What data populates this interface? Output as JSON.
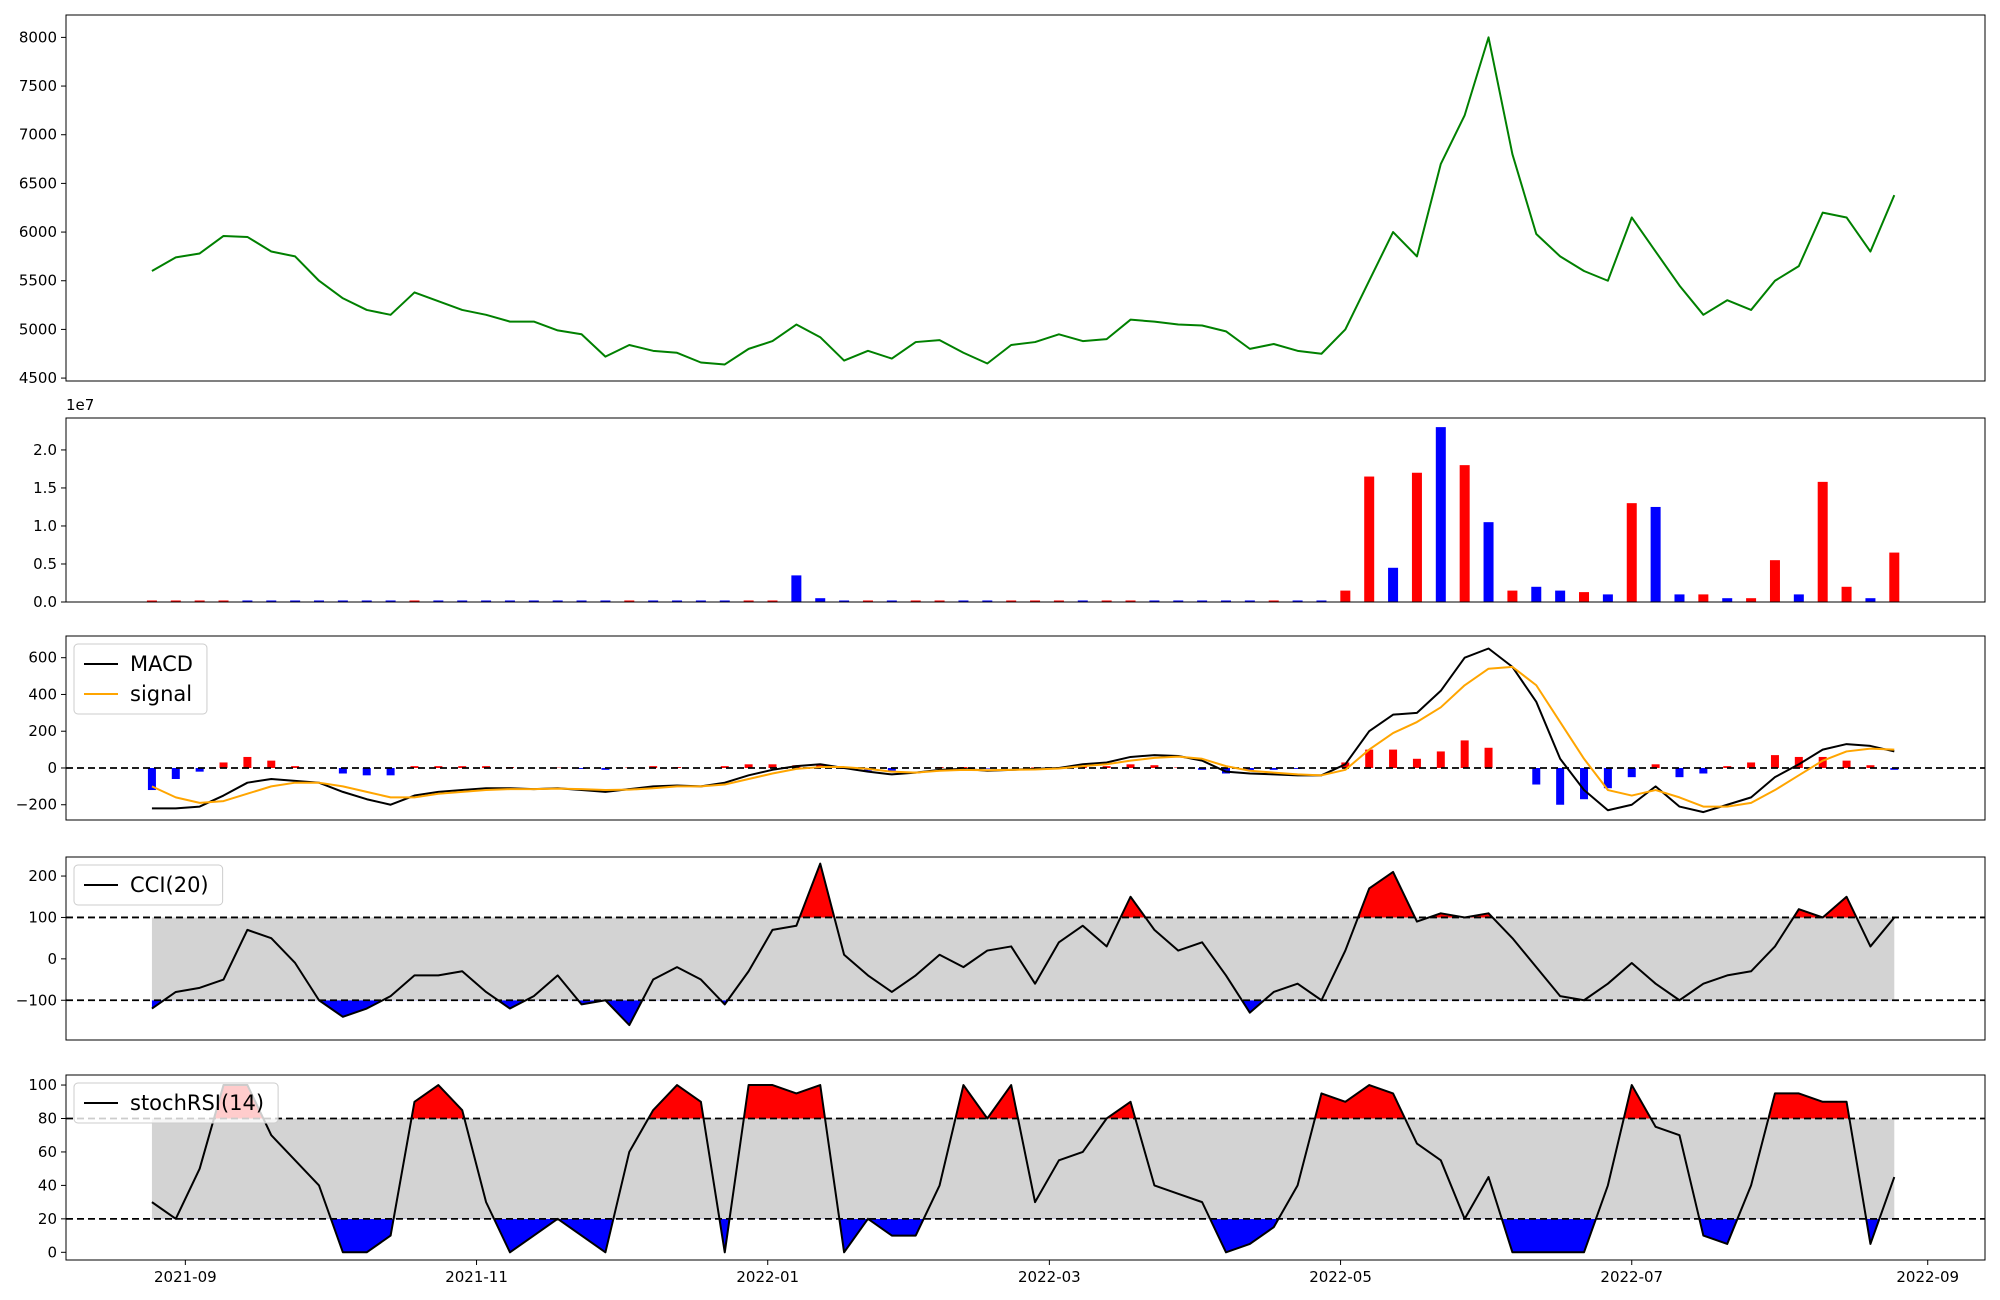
{
  "chart_data": [
    {
      "type": "line",
      "x": [
        24,
        29,
        34,
        39,
        44,
        49,
        54,
        59,
        64,
        69,
        74,
        79,
        84,
        89,
        94,
        99,
        104,
        109,
        114,
        119,
        124,
        129,
        134,
        139,
        144,
        149,
        154,
        159,
        164,
        169,
        174,
        179,
        184,
        189,
        194,
        199,
        204,
        209,
        214,
        219,
        224,
        229,
        234,
        239,
        244,
        249,
        254,
        259,
        264,
        269,
        274,
        279,
        284,
        289,
        294,
        299,
        304,
        309,
        314,
        319,
        324,
        329,
        334,
        339,
        344,
        349,
        354,
        359,
        364,
        369,
        374,
        379,
        384,
        389
      ],
      "xlim": [
        6,
        408
      ],
      "series": [
        {
          "color": "green",
          "values": [
            5600,
            5740,
            5780,
            5960,
            5950,
            5800,
            5750,
            5500,
            5320,
            5200,
            5150,
            5380,
            5290,
            5200,
            5150,
            5080,
            5080,
            4990,
            4950,
            4720,
            4840,
            4780,
            4760,
            4660,
            4640,
            4800,
            4880,
            5050,
            4920,
            4680,
            4780,
            4700,
            4870,
            4890,
            4760,
            4650,
            4840,
            4870,
            4950,
            4880,
            4900,
            5100,
            5080,
            5050,
            5040,
            4980,
            4800,
            4850,
            4780,
            4750,
            5000,
            5500,
            6000,
            5750,
            6700,
            7200,
            8000,
            6800,
            5980,
            5750,
            5600,
            5500,
            6150,
            5800,
            5450,
            5150,
            5300,
            5200,
            5500,
            5650,
            6200,
            6150,
            5800,
            6380
          ]
        }
      ],
      "ylim": [
        4470,
        8230
      ],
      "yticks": [
        4500,
        5000,
        5500,
        6000,
        6500,
        7000,
        7500,
        8000
      ]
    },
    {
      "type": "bar",
      "x": [
        24,
        29,
        34,
        39,
        44,
        49,
        54,
        59,
        64,
        69,
        74,
        79,
        84,
        89,
        94,
        99,
        104,
        109,
        114,
        119,
        124,
        129,
        134,
        139,
        144,
        149,
        154,
        159,
        164,
        169,
        174,
        179,
        184,
        189,
        194,
        199,
        204,
        209,
        214,
        219,
        224,
        229,
        234,
        239,
        244,
        249,
        254,
        259,
        264,
        269,
        274,
        279,
        284,
        289,
        294,
        299,
        304,
        309,
        314,
        319,
        324,
        329,
        334,
        339,
        344,
        349,
        354,
        359,
        364,
        369,
        374,
        379,
        384,
        389
      ],
      "xlim": [
        6,
        408
      ],
      "values": [
        0.02,
        0.02,
        0.02,
        0.02,
        0.02,
        0.02,
        0.02,
        0.02,
        0.02,
        0.02,
        0.02,
        0.02,
        0.02,
        0.02,
        0.02,
        0.02,
        0.02,
        0.02,
        0.02,
        0.02,
        0.02,
        0.02,
        0.02,
        0.02,
        0.02,
        0.02,
        0.02,
        0.35,
        0.05,
        0.02,
        0.02,
        0.02,
        0.02,
        0.02,
        0.02,
        0.02,
        0.02,
        0.02,
        0.02,
        0.02,
        0.02,
        0.02,
        0.02,
        0.02,
        0.02,
        0.02,
        0.02,
        0.02,
        0.02,
        0.02,
        0.15,
        1.65,
        0.45,
        1.7,
        2.3,
        1.8,
        1.05,
        0.15,
        0.2,
        0.15,
        0.13,
        0.1,
        1.3,
        1.25,
        0.1,
        0.1,
        0.05,
        0.05,
        0.55,
        0.1,
        1.58,
        0.2,
        0.05,
        0.65
      ],
      "colors": [
        "red",
        "red",
        "red",
        "red",
        "blue",
        "blue",
        "blue",
        "blue",
        "blue",
        "blue",
        "blue",
        "red",
        "blue",
        "blue",
        "blue",
        "blue",
        "blue",
        "blue",
        "blue",
        "blue",
        "red",
        "blue",
        "blue",
        "blue",
        "blue",
        "red",
        "red",
        "blue",
        "blue",
        "blue",
        "red",
        "blue",
        "red",
        "red",
        "blue",
        "blue",
        "red",
        "red",
        "red",
        "blue",
        "red",
        "red",
        "blue",
        "blue",
        "blue",
        "blue",
        "blue",
        "red",
        "blue",
        "blue",
        "red",
        "red",
        "blue",
        "red",
        "blue",
        "red",
        "blue",
        "red",
        "blue",
        "blue",
        "red",
        "blue",
        "red",
        "blue",
        "blue",
        "red",
        "blue",
        "red",
        "red",
        "blue",
        "red",
        "red",
        "blue",
        "red"
      ],
      "offset_label": "1e7",
      "ylim": [
        0,
        2.42
      ],
      "yticks": [
        {
          "value": 0,
          "label": "0.0"
        },
        0.5,
        {
          "value": 1,
          "label": "1.0"
        },
        1.5,
        {
          "value": 2,
          "label": "2.0"
        }
      ]
    },
    {
      "type": "macd",
      "x": [
        24,
        29,
        34,
        39,
        44,
        49,
        54,
        59,
        64,
        69,
        74,
        79,
        84,
        89,
        94,
        99,
        104,
        109,
        114,
        119,
        124,
        129,
        134,
        139,
        144,
        149,
        154,
        159,
        164,
        169,
        174,
        179,
        184,
        189,
        194,
        199,
        204,
        209,
        214,
        219,
        224,
        229,
        234,
        239,
        244,
        249,
        254,
        259,
        264,
        269,
        274,
        279,
        284,
        289,
        294,
        299,
        304,
        309,
        314,
        319,
        324,
        329,
        334,
        339,
        344,
        349,
        354,
        359,
        364,
        369,
        374,
        379,
        384,
        389
      ],
      "xlim": [
        6,
        408
      ],
      "series": [
        {
          "name": "MACD",
          "color": "black",
          "values": [
            -220,
            -220,
            -210,
            -150,
            -80,
            -60,
            -70,
            -80,
            -130,
            -170,
            -200,
            -150,
            -130,
            -120,
            -110,
            -110,
            -115,
            -110,
            -120,
            -130,
            -115,
            -100,
            -95,
            -100,
            -80,
            -40,
            -10,
            10,
            20,
            0,
            -20,
            -35,
            -25,
            -10,
            -5,
            -15,
            -10,
            -5,
            0,
            20,
            30,
            60,
            70,
            65,
            40,
            -20,
            -30,
            -35,
            -40,
            -40,
            20,
            200,
            290,
            300,
            420,
            600,
            650,
            550,
            360,
            50,
            -120,
            -230,
            -200,
            -100,
            -210,
            -240,
            -200,
            -160,
            -50,
            20,
            100,
            130,
            120,
            90
          ]
        },
        {
          "name": "signal",
          "color": "orange",
          "values": [
            -100,
            -160,
            -190,
            -180,
            -140,
            -100,
            -80,
            -80,
            -100,
            -130,
            -160,
            -160,
            -140,
            -130,
            -120,
            -115,
            -115,
            -112,
            -115,
            -120,
            -118,
            -110,
            -100,
            -100,
            -90,
            -60,
            -30,
            -5,
            5,
            5,
            -5,
            -20,
            -25,
            -15,
            -10,
            -12,
            -10,
            -8,
            -3,
            10,
            20,
            40,
            55,
            62,
            50,
            10,
            -15,
            -25,
            -35,
            -40,
            -10,
            100,
            190,
            250,
            330,
            450,
            540,
            550,
            450,
            250,
            50,
            -120,
            -150,
            -120,
            -160,
            -210,
            -210,
            -190,
            -120,
            -40,
            40,
            90,
            105,
            100
          ]
        }
      ],
      "histogram": {
        "positive_color": "red",
        "negative_color": "blue",
        "values": [
          -120,
          -60,
          -20,
          30,
          60,
          40,
          10,
          0,
          -30,
          -40,
          -40,
          10,
          10,
          10,
          10,
          5,
          0,
          2,
          -5,
          -10,
          3,
          10,
          5,
          0,
          10,
          20,
          20,
          15,
          15,
          -5,
          -15,
          -15,
          0,
          5,
          5,
          -3,
          0,
          3,
          3,
          10,
          10,
          20,
          15,
          3,
          -10,
          -30,
          -15,
          -10,
          -5,
          0,
          30,
          100,
          100,
          50,
          90,
          150,
          110,
          0,
          -90,
          -200,
          -170,
          -110,
          -50,
          20,
          -50,
          -30,
          10,
          30,
          70,
          60,
          60,
          40,
          15,
          -10
        ]
      },
      "reference_lines": [
        0
      ],
      "ylim": [
        -283,
        718
      ],
      "yticks": [
        {
          "value": -200,
          "label": "−200"
        },
        0,
        200,
        400,
        600
      ],
      "legend": "upper left"
    },
    {
      "type": "oscillator",
      "x": [
        24,
        29,
        34,
        39,
        44,
        49,
        54,
        59,
        64,
        69,
        74,
        79,
        84,
        89,
        94,
        99,
        104,
        109,
        114,
        119,
        124,
        129,
        134,
        139,
        144,
        149,
        154,
        159,
        164,
        169,
        174,
        179,
        184,
        189,
        194,
        199,
        204,
        209,
        214,
        219,
        224,
        229,
        234,
        239,
        244,
        249,
        254,
        259,
        264,
        269,
        274,
        279,
        284,
        289,
        294,
        299,
        304,
        309,
        314,
        319,
        324,
        329,
        334,
        339,
        344,
        349,
        354,
        359,
        364,
        369,
        374,
        379,
        384,
        389
      ],
      "xlim": [
        6,
        408
      ],
      "series": [
        {
          "name": "CCI(20)",
          "color": "black",
          "values": [
            -120,
            -80,
            -70,
            -50,
            70,
            50,
            -10,
            -100,
            -140,
            -120,
            -90,
            -40,
            -40,
            -30,
            -80,
            -120,
            -90,
            -40,
            -110,
            -100,
            -160,
            -50,
            -20,
            -50,
            -110,
            -30,
            70,
            80,
            230,
            10,
            -40,
            -80,
            -40,
            10,
            -20,
            20,
            30,
            -60,
            40,
            80,
            30,
            150,
            70,
            20,
            40,
            -40,
            -130,
            -80,
            -60,
            -100,
            20,
            170,
            210,
            90,
            110,
            100,
            110,
            50,
            -20,
            -90,
            -100,
            -60,
            -10,
            -60,
            -100,
            -60,
            -40,
            -30,
            30,
            120,
            100,
            150,
            30,
            100
          ]
        }
      ],
      "bounds": [
        -100,
        100
      ],
      "band_color": "lightgray",
      "upper_fill": "red",
      "lower_fill": "blue",
      "ylim": [
        -196,
        246
      ],
      "yticks": [
        {
          "value": -100,
          "label": "−100"
        },
        0,
        100,
        200
      ],
      "legend": "upper left"
    },
    {
      "type": "oscillator",
      "x": [
        24,
        29,
        34,
        39,
        44,
        49,
        54,
        59,
        64,
        69,
        74,
        79,
        84,
        89,
        94,
        99,
        104,
        109,
        114,
        119,
        124,
        129,
        134,
        139,
        144,
        149,
        154,
        159,
        164,
        169,
        174,
        179,
        184,
        189,
        194,
        199,
        204,
        209,
        214,
        219,
        224,
        229,
        234,
        239,
        244,
        249,
        254,
        259,
        264,
        269,
        274,
        279,
        284,
        289,
        294,
        299,
        304,
        309,
        314,
        319,
        324,
        329,
        334,
        339,
        344,
        349,
        354,
        359,
        364,
        369,
        374,
        379,
        384,
        389
      ],
      "xlim": [
        6,
        408
      ],
      "series": [
        {
          "name": "stochRSI(14)",
          "color": "black",
          "values": [
            30,
            20,
            50,
            100,
            100,
            70,
            55,
            40,
            0,
            0,
            10,
            90,
            100,
            85,
            30,
            0,
            10,
            20,
            10,
            0,
            60,
            85,
            100,
            90,
            0,
            100,
            100,
            95,
            100,
            0,
            20,
            10,
            10,
            40,
            100,
            80,
            100,
            30,
            55,
            60,
            80,
            90,
            40,
            35,
            30,
            0,
            5,
            15,
            40,
            95,
            90,
            100,
            95,
            65,
            55,
            20,
            45,
            0,
            0,
            0,
            0,
            40,
            100,
            75,
            70,
            10,
            5,
            40,
            95,
            95,
            90,
            90,
            5,
            45
          ]
        }
      ],
      "bounds": [
        20,
        80
      ],
      "band_color": "lightgray",
      "upper_fill": "red",
      "lower_fill": "blue",
      "ylim": [
        -4.6,
        106
      ],
      "yticks": [
        0,
        20,
        40,
        60,
        80,
        100
      ],
      "xticks": [
        {
          "value": 31,
          "label": "2021-09"
        },
        {
          "value": 92,
          "label": "2021-11"
        },
        {
          "value": 153,
          "label": "2022-01"
        },
        {
          "value": 212,
          "label": "2022-03"
        },
        {
          "value": 273,
          "label": "2022-05"
        },
        {
          "value": 334,
          "label": "2022-07"
        },
        {
          "value": 396,
          "label": "2022-09"
        }
      ],
      "legend": "upper left"
    }
  ]
}
